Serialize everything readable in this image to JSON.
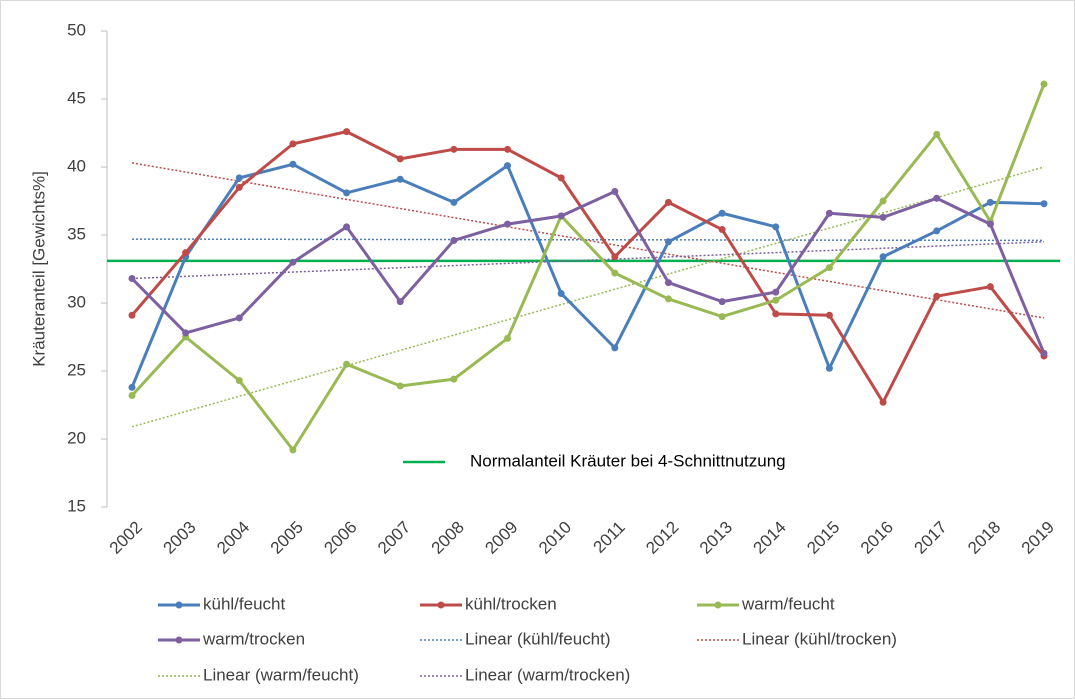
{
  "chart_data": {
    "type": "line",
    "y_label": "Kräuteranteil [Gewichts%]",
    "categories": [
      "2002",
      "2003",
      "2004",
      "2005",
      "2006",
      "2007",
      "2008",
      "2009",
      "2010",
      "2011",
      "2012",
      "2013",
      "2014",
      "2015",
      "2016",
      "2017",
      "2018",
      "2019"
    ],
    "series": [
      {
        "name": "kühl/feucht",
        "color": "#4a7ebb",
        "values": [
          23.8,
          33.4,
          39.2,
          40.2,
          38.1,
          39.1,
          37.4,
          40.1,
          30.7,
          26.7,
          34.5,
          36.6,
          35.6,
          25.2,
          33.4,
          35.3,
          37.4,
          37.3
        ]
      },
      {
        "name": "kühl/trocken",
        "color": "#be4b48",
        "values": [
          29.1,
          33.7,
          38.5,
          41.7,
          42.6,
          40.6,
          41.3,
          41.3,
          39.2,
          33.4,
          37.4,
          35.4,
          29.2,
          29.1,
          22.7,
          30.5,
          31.2,
          26.1
        ]
      },
      {
        "name": "warm/feucht",
        "color": "#98b954",
        "values": [
          23.2,
          27.5,
          24.3,
          19.2,
          25.5,
          23.9,
          24.4,
          27.4,
          36.4,
          32.2,
          30.3,
          29.0,
          30.2,
          32.6,
          37.5,
          42.4,
          36.0,
          46.1
        ]
      },
      {
        "name": "warm/trocken",
        "color": "#7d60a0",
        "values": [
          31.8,
          27.8,
          28.9,
          33.0,
          35.6,
          30.1,
          34.6,
          35.8,
          36.4,
          38.2,
          31.5,
          30.1,
          30.8,
          36.6,
          36.3,
          37.7,
          35.8,
          26.3
        ]
      }
    ],
    "trendlines": [
      {
        "name": "Linear (kühl/feucht)",
        "color": "#4a7ebb",
        "start": 34.7,
        "end": 34.6
      },
      {
        "name": "Linear (kühl/trocken)",
        "color": "#be4b48",
        "start": 40.3,
        "end": 28.9
      },
      {
        "name": "Linear (warm/feucht)",
        "color": "#98b954",
        "start": 20.9,
        "end": 40.0
      },
      {
        "name": "Linear (warm/trocken)",
        "color": "#7d60a0",
        "start": 31.8,
        "end": 34.5
      }
    ],
    "reference_line": {
      "value": 33.1,
      "label": "Normalanteil Kräuter bei 4-Schnittnutzung",
      "color": "#00b050"
    },
    "ylim": [
      15,
      50
    ],
    "yticks": [
      15,
      20,
      25,
      30,
      35,
      40,
      45,
      50
    ],
    "grid": false,
    "legend": "bottom"
  }
}
